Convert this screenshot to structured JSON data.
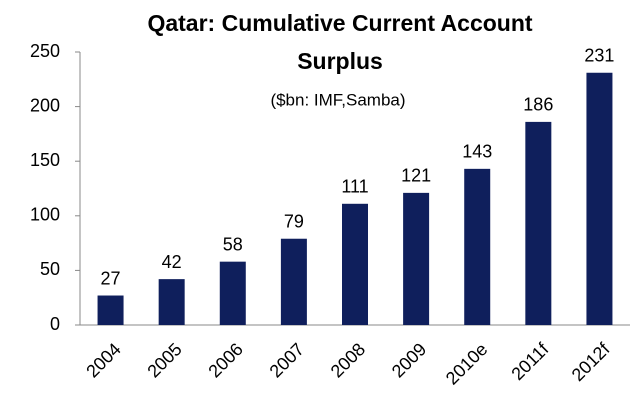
{
  "chart_data": {
    "type": "bar",
    "title": "Qatar: Cumulative Current Account Surplus",
    "subtitle": "($bn: IMF,Samba)",
    "categories": [
      "2004",
      "2005",
      "2006",
      "2007",
      "2008",
      "2009",
      "2010e",
      "2011f",
      "2012f"
    ],
    "values": [
      27,
      42,
      58,
      79,
      111,
      121,
      143,
      186,
      231
    ],
    "color": "#0f1f5c",
    "ylim": [
      0,
      250
    ],
    "yticks": [
      0,
      50,
      100,
      150,
      200,
      250
    ],
    "grid": false
  }
}
